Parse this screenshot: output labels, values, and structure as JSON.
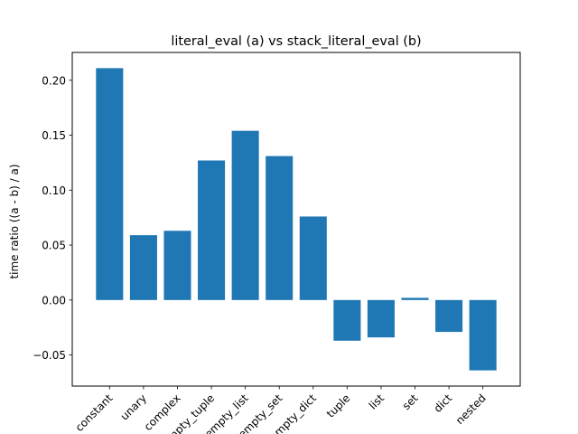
{
  "chart_data": {
    "type": "bar",
    "title": "literal_eval (a) vs stack_literal_eval (b)",
    "xlabel": "",
    "ylabel": "time ratio ((a - b) / a)",
    "categories": [
      "constant",
      "unary",
      "complex",
      "empty_tuple",
      "empty_list",
      "empty_set",
      "empty_dict",
      "tuple",
      "list",
      "set",
      "dict",
      "nested"
    ],
    "values": [
      0.211,
      0.059,
      0.063,
      0.127,
      0.154,
      0.131,
      0.076,
      -0.037,
      -0.034,
      0.002,
      -0.029,
      -0.064
    ],
    "ylim": [
      -0.0783,
      0.2253
    ],
    "yticks": [
      -0.05,
      0.0,
      0.05,
      0.1,
      0.15,
      0.2
    ],
    "ytick_labels": [
      "−0.05",
      "0.00",
      "0.05",
      "0.10",
      "0.15",
      "0.20"
    ],
    "bar_color": "#1f77b4",
    "grid": false
  }
}
